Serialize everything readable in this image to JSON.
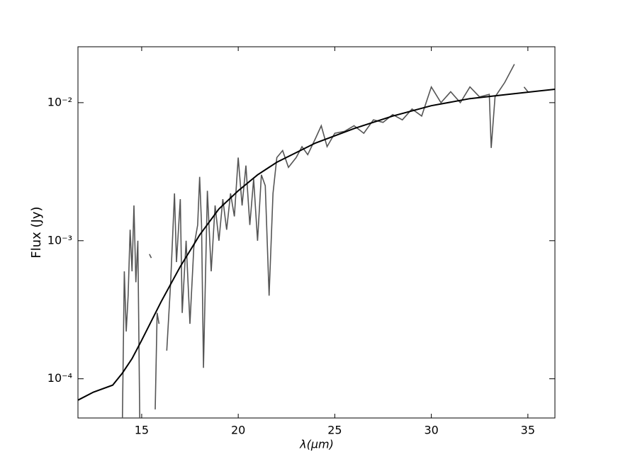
{
  "chart_data": {
    "type": "line",
    "x_label": "λ(μm)",
    "y_label": "Flux (Jy)",
    "log_y": true,
    "xlim": [
      11.7,
      36.4
    ],
    "ylim": [
      5.2e-05,
      0.0254
    ],
    "xticks": [
      15,
      20,
      25,
      30,
      35
    ],
    "yticks": [
      {
        "value": 0.0001,
        "label": "10⁻⁴"
      },
      {
        "value": 0.001,
        "label": "10⁻³"
      },
      {
        "value": 0.01,
        "label": "10⁻²"
      }
    ],
    "series": [
      {
        "color": "#555555",
        "x": [
          14.0,
          14.1,
          14.2,
          14.3,
          14.4,
          14.5,
          14.6,
          14.7,
          14.8,
          14.9,
          null,
          15.4,
          15.5,
          null,
          15.7,
          15.8,
          15.9,
          null,
          16.3,
          16.5,
          16.7,
          16.8,
          17.0,
          17.1,
          17.3,
          17.5,
          17.7,
          17.9,
          18.0,
          18.1,
          18.2,
          18.4,
          18.6,
          18.8,
          19.0,
          19.2,
          19.4,
          19.6,
          19.8,
          20.0,
          20.2,
          20.4,
          20.6,
          20.8,
          21.0,
          21.2,
          21.4,
          21.6,
          21.8,
          22.0,
          22.3,
          22.6,
          23.0,
          23.3,
          23.6,
          24.0,
          24.3,
          24.6,
          25.0,
          25.5,
          26.0,
          26.5,
          27.0,
          27.5,
          28.0,
          28.5,
          29.0,
          29.5,
          30.0,
          30.5,
          31.0,
          31.5,
          32.0,
          32.5,
          33.0,
          33.1,
          33.3,
          33.8,
          34.3,
          null,
          34.8,
          35.0
        ],
        "values": [
          5e-05,
          0.0006,
          0.00022,
          0.0004,
          0.0012,
          0.0006,
          0.0018,
          0.0005,
          0.001,
          5e-05,
          null,
          0.0008,
          0.00075,
          null,
          6e-05,
          0.0003,
          0.00025,
          null,
          0.00016,
          0.0005,
          0.0022,
          0.0007,
          0.002,
          0.0003,
          0.001,
          0.00025,
          0.0009,
          0.0013,
          0.0029,
          0.0013,
          0.00012,
          0.0023,
          0.0006,
          0.0018,
          0.001,
          0.002,
          0.0012,
          0.0022,
          0.0015,
          0.004,
          0.0018,
          0.0035,
          0.0013,
          0.0028,
          0.001,
          0.003,
          0.0025,
          0.0004,
          0.0022,
          0.004,
          0.0045,
          0.0034,
          0.004,
          0.0048,
          0.0042,
          0.0055,
          0.0068,
          0.0048,
          0.006,
          0.0062,
          0.0068,
          0.006,
          0.0075,
          0.0072,
          0.0082,
          0.0075,
          0.009,
          0.008,
          0.013,
          0.01,
          0.012,
          0.01,
          0.013,
          0.011,
          0.0115,
          0.0047,
          0.011,
          0.014,
          0.019,
          null,
          0.013,
          0.012
        ]
      },
      {
        "color": "#000000",
        "x": [
          11.7,
          12.5,
          13.5,
          14.0,
          14.5,
          15.0,
          16.0,
          17.0,
          18.0,
          19.0,
          20.0,
          21.0,
          22.0,
          24.0,
          26.0,
          28.0,
          30.0,
          32.0,
          34.0,
          36.4
        ],
        "values": [
          7e-05,
          8e-05,
          9e-05,
          0.00011,
          0.00014,
          0.00019,
          0.00036,
          0.00065,
          0.0011,
          0.0017,
          0.0023,
          0.003,
          0.0037,
          0.0051,
          0.0065,
          0.008,
          0.0095,
          0.0107,
          0.0115,
          0.0125
        ]
      }
    ]
  }
}
